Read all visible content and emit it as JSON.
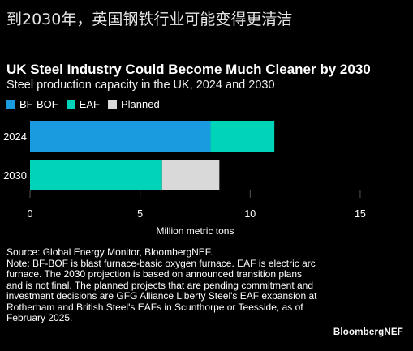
{
  "headline": "到2030年，英国钢铁行业可能变得更清洁",
  "brand": "BloombergNEF",
  "source": "Source: Global Energy Monitor, BloombergNEF.",
  "note": "Note: BF-BOF is blast furnace-basic oxygen furnace. EAF is electric arc furnace. The 2030 projection is based on announced transition plans and is not final. The planned projects that are pending commitment and investment decisions are GFG Alliance Liberty Steel's EAF expansion at Rotherham and British Steel's EAFs in Scunthorpe or Teesside, as of February 2025.",
  "chart_data": {
    "type": "bar",
    "orientation": "horizontal",
    "stacked": true,
    "title": "UK Steel Industry Could Become Much Cleaner by 2030",
    "subtitle": "Steel production capacity in the UK, 2024 and 2030",
    "xlabel": "Million metric tons",
    "ylabel": "",
    "categories": [
      "2024",
      "2030"
    ],
    "category_labels": [
      "2024",
      "2030"
    ],
    "series": [
      {
        "name": "BF-BOF",
        "color": "#1a9be0",
        "values": [
          8.2,
          0
        ]
      },
      {
        "name": "EAF",
        "color": "#00d4b8",
        "values": [
          2.9,
          6.0
        ]
      },
      {
        "name": "Planned",
        "color": "#d9d9d9",
        "values": [
          0,
          2.6
        ]
      }
    ],
    "xlim": [
      0,
      15
    ],
    "xticks": [
      0,
      5,
      10,
      15
    ],
    "xtick_labels": [
      "0",
      "5",
      "10",
      "15"
    ],
    "grid": true,
    "legend_position": "top-left"
  }
}
